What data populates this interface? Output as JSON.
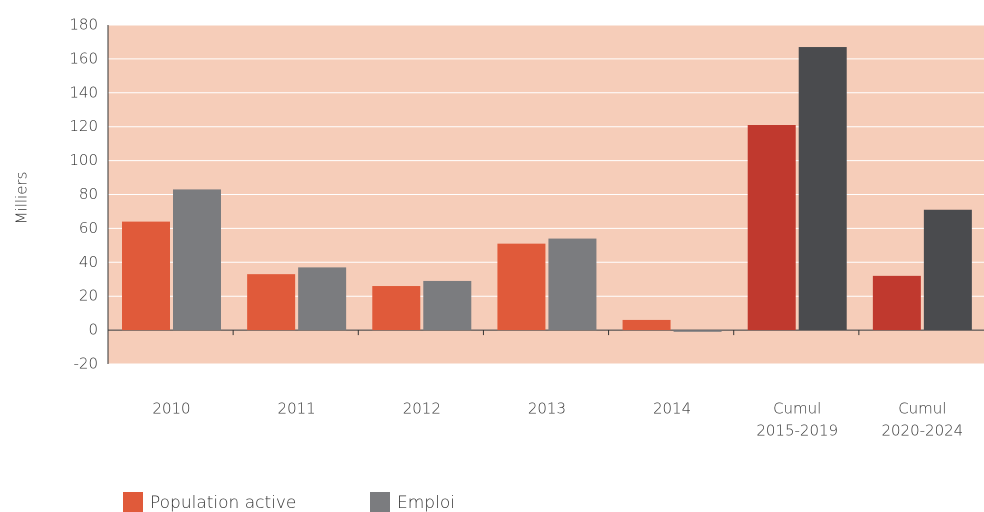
{
  "chart_data": {
    "type": "bar",
    "y_label": "Milliers",
    "categories": [
      [
        "2010"
      ],
      [
        "2011"
      ],
      [
        "2012"
      ],
      [
        "2013"
      ],
      [
        "2014"
      ],
      [
        "Cumul",
        "2015-2019"
      ],
      [
        "Cumul",
        "2020-2024"
      ]
    ],
    "series": [
      {
        "name": "Population active",
        "color": "#e05a3a",
        "colors": [
          "#e05a3a",
          "#e05a3a",
          "#e05a3a",
          "#e05a3a",
          "#e05a3a",
          "#c0392e",
          "#c0392e"
        ],
        "values": [
          64,
          33,
          26,
          51,
          6,
          121,
          32
        ]
      },
      {
        "name": "Emploi",
        "color": "#7b7c7f",
        "colors": [
          "#7b7c7f",
          "#7b7c7f",
          "#7b7c7f",
          "#7b7c7f",
          "#7b7c7f",
          "#4a4b4e",
          "#4a4b4e"
        ],
        "values": [
          83,
          37,
          29,
          54,
          -1,
          167,
          71
        ]
      }
    ],
    "ylim": [
      -20,
      180
    ],
    "yticks": [
      -20,
      0,
      20,
      40,
      60,
      80,
      100,
      120,
      140,
      160,
      180
    ],
    "grid": true,
    "plot_background": "#f6cdb9",
    "legend": "bottom-left"
  }
}
